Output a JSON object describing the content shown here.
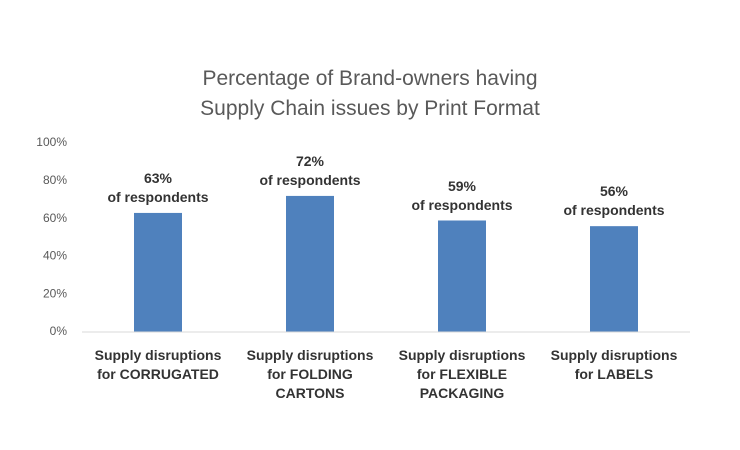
{
  "chart_data": {
    "type": "bar",
    "title": "Percentage of Brand-owners having\nSupply Chain issues by Print Format",
    "categories": [
      "Supply disruptions\nfor CORRUGATED",
      "Supply disruptions\nfor FOLDING\nCARTONS",
      "Supply disruptions\nfor FLEXIBLE\nPACKAGING",
      "Supply disruptions\nfor LABELS"
    ],
    "values": [
      63,
      72,
      59,
      56
    ],
    "value_labels": [
      "63%\nof respondents",
      "72%\nof respondents",
      "59%\nof respondents",
      "56%\nof respondents"
    ],
    "color": "#4f81bd",
    "ylim": [
      0,
      100
    ],
    "yticks": [
      {
        "value": 0,
        "label": "0%"
      },
      {
        "value": 20,
        "label": "20%"
      },
      {
        "value": 40,
        "label": "40%"
      },
      {
        "value": 60,
        "label": "60%"
      },
      {
        "value": 80,
        "label": "80%"
      },
      {
        "value": 100,
        "label": "100%"
      }
    ],
    "grid": false
  }
}
